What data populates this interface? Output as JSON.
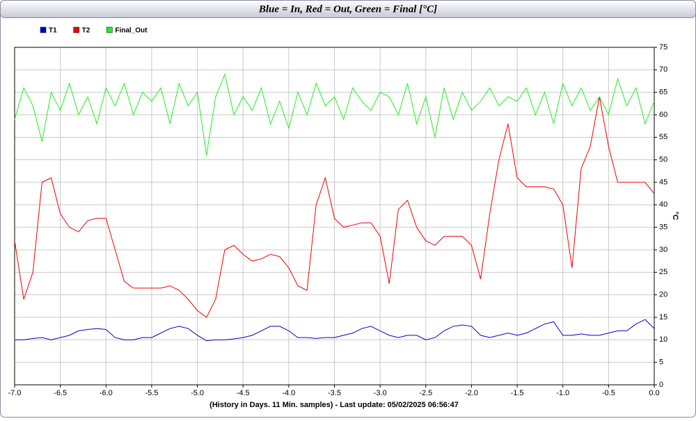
{
  "chart_data": {
    "type": "line",
    "title": "Blue = In,  Red = Out, Green = Final [°C]",
    "x_label": "(History in Days. 11 Min. samples) - Last update: 05/02/2025 06:56:47",
    "y_label": "°C",
    "x": [
      -7,
      -6.9,
      -6.8,
      -6.7,
      -6.6,
      -6.5,
      -6.4,
      -6.3,
      -6.2,
      -6.1,
      -6,
      -5.9,
      -5.8,
      -5.7,
      -5.6,
      -5.5,
      -5.4,
      -5.3,
      -5.2,
      -5.1,
      -5,
      -4.9,
      -4.8,
      -4.7,
      -4.6,
      -4.5,
      -4.4,
      -4.3,
      -4.2,
      -4.1,
      -4,
      -3.9,
      -3.8,
      -3.7,
      -3.6,
      -3.5,
      -3.4,
      -3.3,
      -3.2,
      -3.1,
      -3,
      -2.9,
      -2.8,
      -2.7,
      -2.6,
      -2.5,
      -2.4,
      -2.3,
      -2.2,
      -2.1,
      -2,
      -1.9,
      -1.8,
      -1.7,
      -1.6,
      -1.5,
      -1.4,
      -1.3,
      -1.2,
      -1.1,
      -1,
      -0.9,
      -0.8,
      -0.7,
      -0.6,
      -0.5,
      -0.4,
      -0.3,
      -0.2,
      -0.1,
      0
    ],
    "series": [
      {
        "name": "T1",
        "color": "#0000cc",
        "values": [
          10,
          10,
          10.3,
          10.5,
          10,
          10.5,
          11,
          12,
          12.3,
          12.5,
          12.3,
          10.5,
          10,
          10,
          10.5,
          10.5,
          11.5,
          12.5,
          13,
          12.5,
          11,
          9.8,
          10,
          10,
          10.2,
          10.5,
          11,
          12,
          13,
          13,
          12,
          10.5,
          10.5,
          10.3,
          10.5,
          10.5,
          11,
          11.5,
          12.5,
          13,
          12,
          11,
          10.5,
          11,
          11,
          10,
          10.5,
          12,
          13,
          13.3,
          13,
          11,
          10.5,
          11,
          11.5,
          11,
          11.5,
          12.5,
          13.5,
          14,
          11,
          11,
          11.3,
          11,
          11,
          11.5,
          12,
          12,
          13.5,
          14.5,
          12.5
        ]
      },
      {
        "name": "T2",
        "color": "#ee0000",
        "values": [
          32,
          19,
          25,
          45,
          46,
          38,
          35,
          34,
          36.5,
          37,
          37,
          30,
          23,
          21.5,
          21.5,
          21.5,
          21.5,
          22,
          21,
          19,
          16.5,
          15,
          19,
          30,
          31,
          29,
          27.5,
          28,
          29,
          28.5,
          26,
          22,
          21,
          40,
          46,
          37,
          35,
          35.5,
          36,
          36,
          33,
          22.5,
          39,
          41,
          35,
          32,
          31,
          33,
          33,
          33,
          31,
          23.5,
          38,
          50,
          58,
          46,
          44,
          44,
          44,
          43.5,
          40,
          26,
          48,
          53,
          64,
          53,
          45,
          45,
          45,
          45,
          42.5
        ]
      },
      {
        "name": "Final_Out",
        "color": "#22ee22",
        "values": [
          59,
          66,
          62,
          54,
          65,
          61,
          67,
          60,
          64,
          58,
          66,
          62,
          67,
          60,
          65,
          63,
          66,
          58,
          67,
          62,
          65,
          51,
          64,
          69,
          60,
          64,
          61,
          66,
          58,
          63,
          57,
          65,
          60,
          67,
          62,
          64,
          59,
          66,
          63,
          61,
          65,
          64,
          60,
          67,
          58,
          64,
          55,
          66,
          59,
          65,
          61,
          63,
          66,
          62,
          64,
          63,
          66,
          60,
          65,
          58,
          67,
          62,
          66,
          61,
          64,
          60,
          68,
          62,
          66,
          58,
          63
        ]
      }
    ],
    "xlim": [
      -7,
      0
    ],
    "xticks": [
      {
        "value": -7,
        "label": "-7.0"
      },
      -6.5,
      {
        "value": -6,
        "label": "-6.0"
      },
      -5.5,
      {
        "value": -5,
        "label": "-5.0"
      },
      -4.5,
      {
        "value": -4,
        "label": "-4.0"
      },
      -3.5,
      {
        "value": -3,
        "label": "-3.0"
      },
      -2.5,
      {
        "value": -2,
        "label": "-2.0"
      },
      -1.5,
      {
        "value": -1,
        "label": "-1.0"
      },
      -0.5,
      {
        "value": 0,
        "label": "0.0"
      }
    ],
    "ylim": [
      0,
      75
    ],
    "yticks": [
      0,
      5,
      10,
      15,
      20,
      25,
      30,
      35,
      40,
      45,
      50,
      55,
      60,
      65,
      70,
      75
    ],
    "grid": true,
    "legend": "top-left"
  }
}
